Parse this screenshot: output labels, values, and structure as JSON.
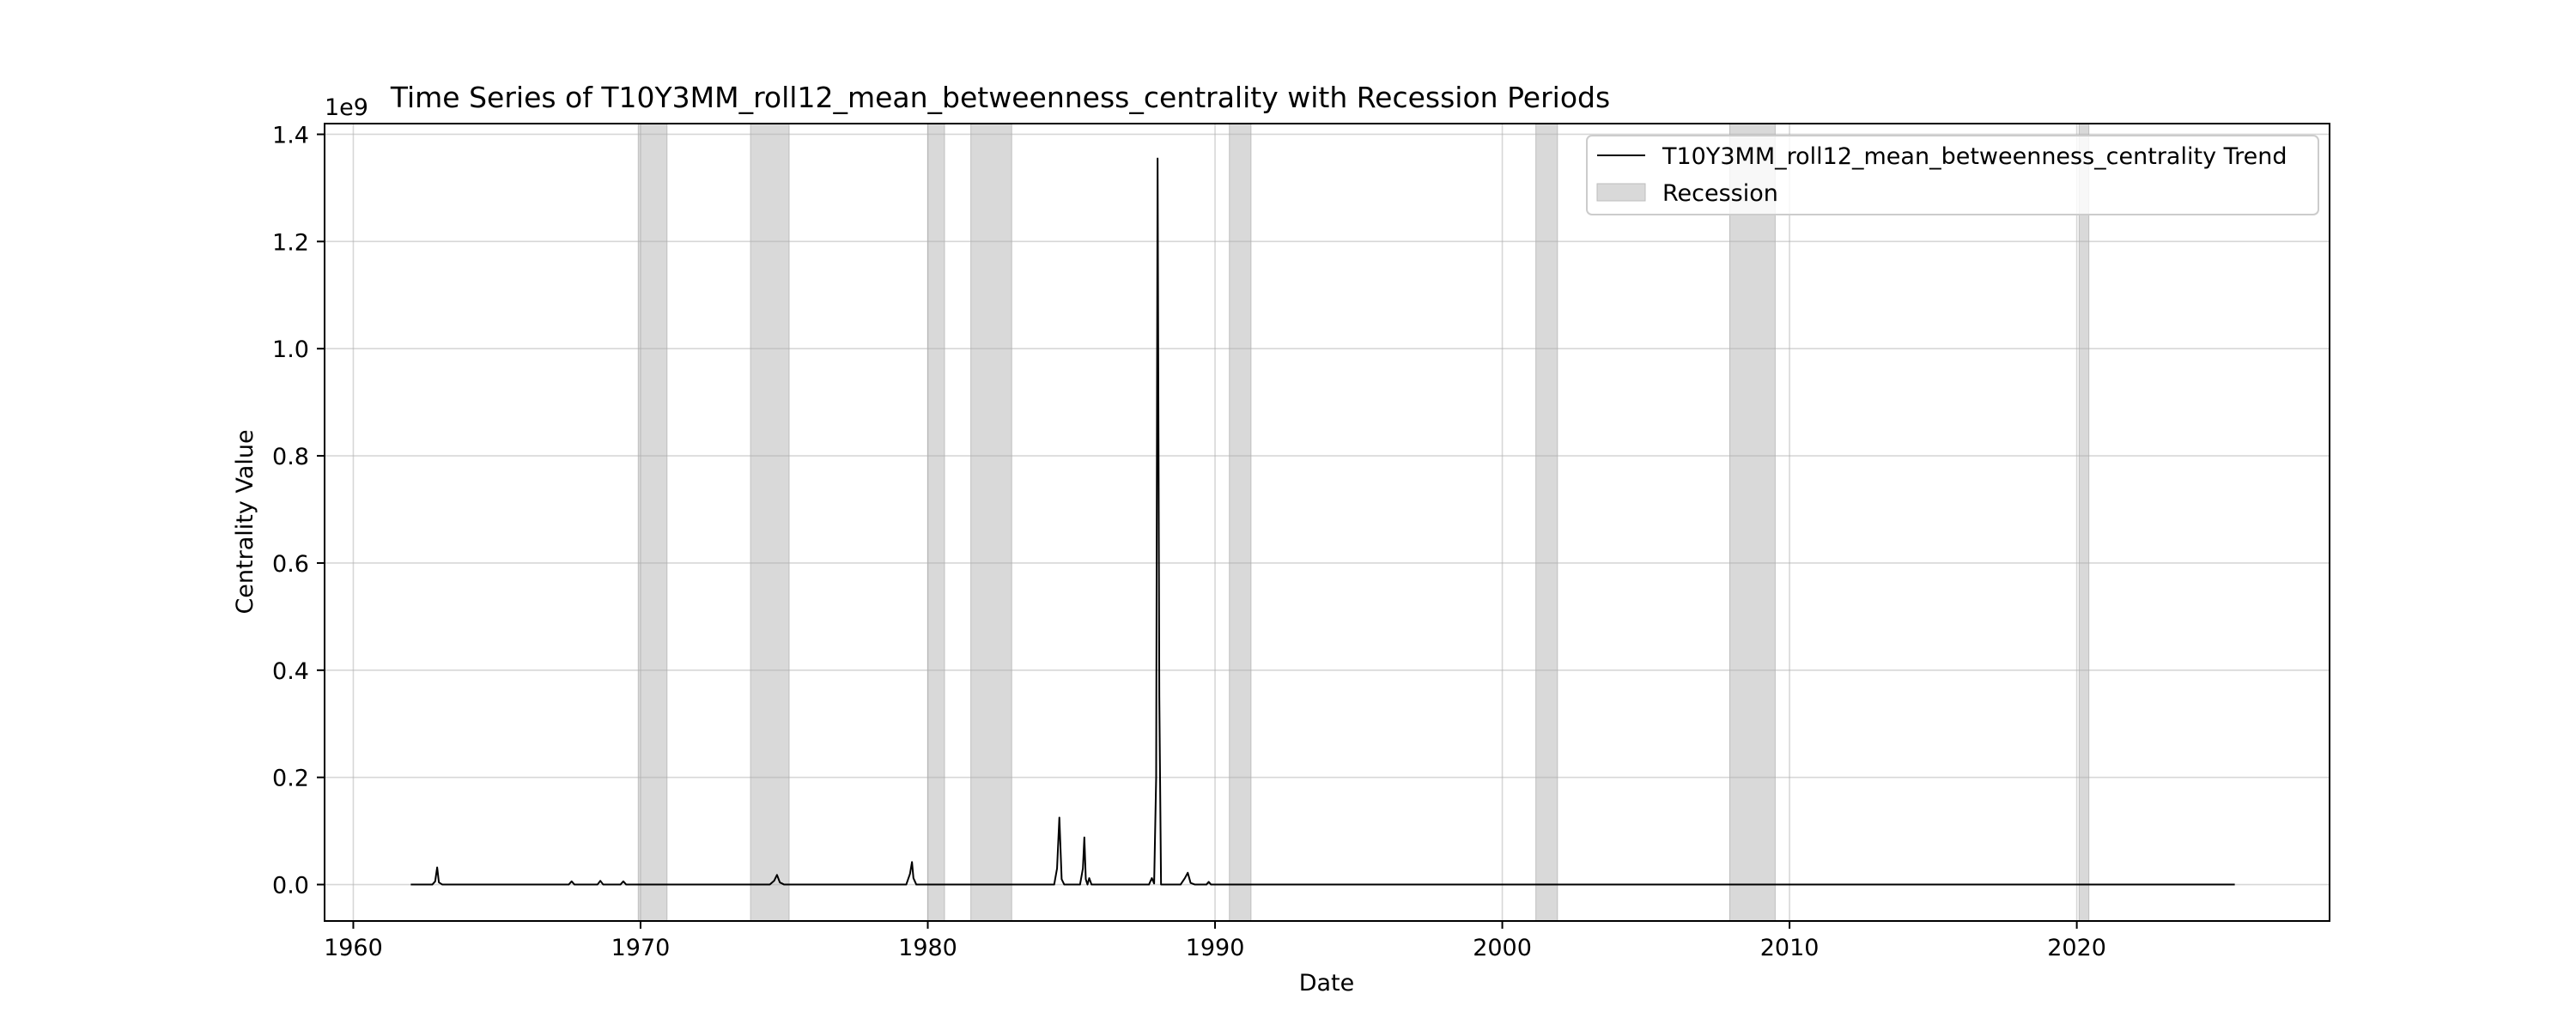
{
  "chart_data": {
    "type": "line",
    "title": "Time Series of T10Y3MM_roll12_mean_betweenness_centrality with Recession Periods",
    "xlabel": "Date",
    "ylabel": "Centrality Value",
    "y_scale_label": "1e9",
    "xlim": [
      1959.0,
      2028.8
    ],
    "ylim": [
      -0.068,
      1.42
    ],
    "x_ticks": [
      1960,
      1970,
      1980,
      1990,
      2000,
      2010,
      2020
    ],
    "x_tick_labels": [
      "1960",
      "1970",
      "1980",
      "1990",
      "2000",
      "2010",
      "2020"
    ],
    "y_ticks": [
      0.0,
      0.2,
      0.4,
      0.6,
      0.8,
      1.0,
      1.2,
      1.4
    ],
    "y_tick_labels": [
      "0.0",
      "0.2",
      "0.4",
      "0.6",
      "0.8",
      "1.0",
      "1.2",
      "1.4"
    ],
    "grid": true,
    "legend_position": "top-right",
    "legend": [
      {
        "label": "T10Y3MM_roll12_mean_betweenness_centrality Trend",
        "kind": "line"
      },
      {
        "label": "Recession",
        "kind": "patch"
      }
    ],
    "recessions": [
      [
        1969.92,
        1970.92
      ],
      [
        1973.83,
        1975.17
      ],
      [
        1980.0,
        1980.58
      ],
      [
        1981.5,
        1982.92
      ],
      [
        1990.5,
        1991.25
      ],
      [
        2001.17,
        2001.92
      ],
      [
        2007.92,
        2009.5
      ],
      [
        2020.08,
        2020.42
      ]
    ],
    "series": [
      {
        "name": "T10Y3MM_roll12_mean_betweenness_centrality Trend",
        "color": "#000000",
        "points": [
          [
            1962.0,
            0.0
          ],
          [
            1962.75,
            0.0
          ],
          [
            1962.85,
            0.006
          ],
          [
            1962.92,
            0.032
          ],
          [
            1962.98,
            0.004
          ],
          [
            1963.1,
            0.0
          ],
          [
            1967.5,
            0.0
          ],
          [
            1967.6,
            0.006
          ],
          [
            1967.7,
            0.0
          ],
          [
            1968.5,
            0.0
          ],
          [
            1968.6,
            0.007
          ],
          [
            1968.7,
            0.0
          ],
          [
            1969.3,
            0.0
          ],
          [
            1969.4,
            0.006
          ],
          [
            1969.5,
            0.0
          ],
          [
            1974.5,
            0.0
          ],
          [
            1974.65,
            0.007
          ],
          [
            1974.75,
            0.018
          ],
          [
            1974.85,
            0.004
          ],
          [
            1975.0,
            0.0
          ],
          [
            1979.25,
            0.0
          ],
          [
            1979.38,
            0.02
          ],
          [
            1979.45,
            0.042
          ],
          [
            1979.5,
            0.012
          ],
          [
            1979.6,
            0.0
          ],
          [
            1984.4,
            0.0
          ],
          [
            1984.5,
            0.03
          ],
          [
            1984.58,
            0.125
          ],
          [
            1984.66,
            0.01
          ],
          [
            1984.75,
            0.0
          ],
          [
            1985.3,
            0.0
          ],
          [
            1985.4,
            0.03
          ],
          [
            1985.45,
            0.088
          ],
          [
            1985.5,
            0.01
          ],
          [
            1985.56,
            0.0
          ],
          [
            1985.62,
            0.012
          ],
          [
            1985.7,
            0.0
          ],
          [
            1987.7,
            0.0
          ],
          [
            1987.8,
            0.012
          ],
          [
            1987.88,
            0.002
          ],
          [
            1987.95,
            0.2
          ],
          [
            1988.0,
            1.355
          ],
          [
            1988.06,
            0.35
          ],
          [
            1988.12,
            0.0
          ],
          [
            1988.8,
            0.0
          ],
          [
            1988.95,
            0.012
          ],
          [
            1989.05,
            0.022
          ],
          [
            1989.15,
            0.003
          ],
          [
            1989.3,
            0.0
          ],
          [
            1989.7,
            0.0
          ],
          [
            1989.78,
            0.005
          ],
          [
            1989.86,
            0.0
          ],
          [
            2025.5,
            0.0
          ]
        ]
      }
    ]
  }
}
